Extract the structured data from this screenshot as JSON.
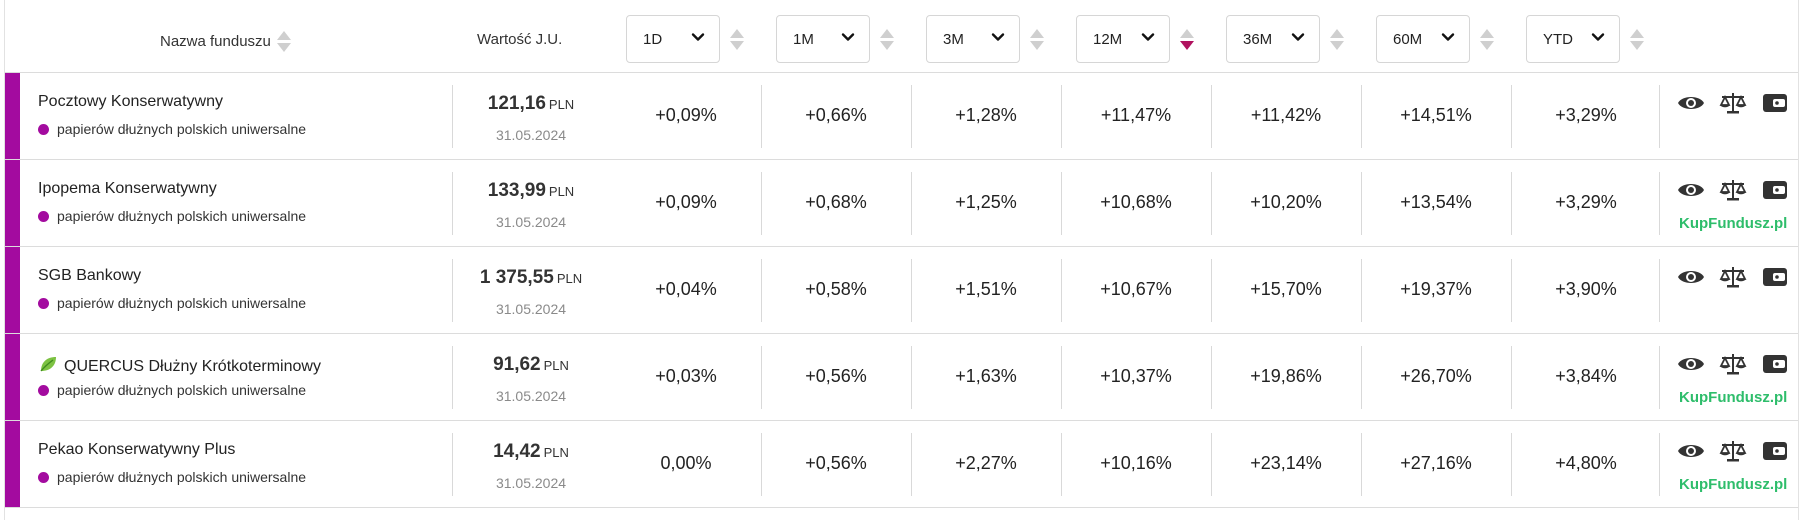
{
  "header": {
    "name_label": "Nazwa funduszu",
    "value_label": "Wartość J.U.",
    "periods": [
      {
        "label": "1D",
        "sorted": false
      },
      {
        "label": "1M",
        "sorted": false
      },
      {
        "label": "3M",
        "sorted": false
      },
      {
        "label": "12M",
        "sorted": true
      },
      {
        "label": "36M",
        "sorted": false
      },
      {
        "label": "60M",
        "sorted": false
      },
      {
        "label": "YTD",
        "sorted": false
      }
    ]
  },
  "colors": {
    "accent": "#a30b9f",
    "sort_active": "#b0125f",
    "kup": "#2ebd6b"
  },
  "rows": [
    {
      "name": "Pocztowy Konserwatywny",
      "leaf": false,
      "category": "papierów dłużnych polskich uniwersalne",
      "price": "121,16",
      "currency": "PLN",
      "date": "31.05.2024",
      "returns": [
        "+0,09%",
        "+0,66%",
        "+1,28%",
        "+11,47%",
        "+11,42%",
        "+14,51%",
        "+3,29%"
      ],
      "kup": ""
    },
    {
      "name": "Ipopema Konserwatywny",
      "leaf": false,
      "category": "papierów dłużnych polskich uniwersalne",
      "price": "133,99",
      "currency": "PLN",
      "date": "31.05.2024",
      "returns": [
        "+0,09%",
        "+0,68%",
        "+1,25%",
        "+10,68%",
        "+10,20%",
        "+13,54%",
        "+3,29%"
      ],
      "kup": "KupFundusz.pl"
    },
    {
      "name": "SGB Bankowy",
      "leaf": false,
      "category": "papierów dłużnych polskich uniwersalne",
      "price": "1 375,55",
      "currency": "PLN",
      "date": "31.05.2024",
      "returns": [
        "+0,04%",
        "+0,58%",
        "+1,51%",
        "+10,67%",
        "+15,70%",
        "+19,37%",
        "+3,90%"
      ],
      "kup": ""
    },
    {
      "name": "QUERCUS Dłużny Krótkoterminowy",
      "leaf": true,
      "category": "papierów dłużnych polskich uniwersalne",
      "price": "91,62",
      "currency": "PLN",
      "date": "31.05.2024",
      "returns": [
        "+0,03%",
        "+0,56%",
        "+1,63%",
        "+10,37%",
        "+19,86%",
        "+26,70%",
        "+3,84%"
      ],
      "kup": "KupFundusz.pl"
    },
    {
      "name": "Pekao Konserwatywny Plus",
      "leaf": false,
      "category": "papierów dłużnych polskich uniwersalne",
      "price": "14,42",
      "currency": "PLN",
      "date": "31.05.2024",
      "returns": [
        "0,00%",
        "+0,56%",
        "+2,27%",
        "+10,16%",
        "+23,14%",
        "+27,16%",
        "+4,80%"
      ],
      "kup": "KupFundusz.pl"
    }
  ]
}
